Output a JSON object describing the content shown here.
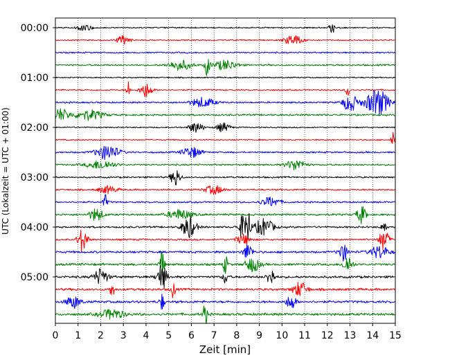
{
  "chart_data": {
    "type": "line",
    "title": "",
    "xlabel": "Zeit  [min]",
    "ylabel": "UTC (Lokalzeit = UTC + 01:00)",
    "xlim": [
      0,
      15
    ],
    "x_ticks": [
      0,
      1,
      2,
      3,
      4,
      5,
      6,
      7,
      8,
      9,
      10,
      11,
      12,
      13,
      14,
      15
    ],
    "grid": "vertical dotted at each minute",
    "y_ticks": [
      "00:00",
      "01:00",
      "02:00",
      "03:00",
      "04:00",
      "05:00"
    ],
    "trace_interval_minutes": 15,
    "colors": [
      "#000000",
      "#ff0000",
      "#0000ff",
      "#008000"
    ],
    "traces": [
      {
        "start": "00:00",
        "color": "#000000",
        "amplitude": 0.35,
        "events": [
          {
            "t": 12.2,
            "a": 1.6,
            "w": 0.1
          },
          {
            "t": 1.3,
            "a": 0.6,
            "w": 0.3
          }
        ]
      },
      {
        "start": "00:15",
        "color": "#ff0000",
        "amplitude": 0.35,
        "events": [
          {
            "t": 3.0,
            "a": 0.7,
            "w": 0.3
          },
          {
            "t": 10.5,
            "a": 0.8,
            "w": 0.4
          }
        ]
      },
      {
        "start": "00:30",
        "color": "#0000ff",
        "amplitude": 0.4,
        "events": []
      },
      {
        "start": "00:45",
        "color": "#008000",
        "amplitude": 0.45,
        "events": [
          {
            "t": 6.7,
            "a": 1.8,
            "w": 0.1
          },
          {
            "t": 5.5,
            "a": 0.8,
            "w": 0.5
          },
          {
            "t": 7.5,
            "a": 0.8,
            "w": 0.5
          }
        ]
      },
      {
        "start": "01:00",
        "color": "#000000",
        "amplitude": 0.35,
        "events": []
      },
      {
        "start": "01:15",
        "color": "#ff0000",
        "amplitude": 0.4,
        "events": [
          {
            "t": 3.2,
            "a": 1.6,
            "w": 0.08
          },
          {
            "t": 4.0,
            "a": 1.2,
            "w": 0.25
          },
          {
            "t": 12.9,
            "a": 1.0,
            "w": 0.1
          }
        ]
      },
      {
        "start": "01:30",
        "color": "#0000ff",
        "amplitude": 0.45,
        "events": [
          {
            "t": 6.5,
            "a": 0.8,
            "w": 0.5
          },
          {
            "t": 13.0,
            "a": 1.5,
            "w": 0.3
          },
          {
            "t": 14.2,
            "a": 2.2,
            "w": 0.5
          }
        ]
      },
      {
        "start": "01:45",
        "color": "#008000",
        "amplitude": 0.5,
        "events": [
          {
            "t": 0.2,
            "a": 1.0,
            "w": 0.4
          },
          {
            "t": 1.5,
            "a": 0.8,
            "w": 0.6
          }
        ]
      },
      {
        "start": "02:00",
        "color": "#000000",
        "amplitude": 0.35,
        "events": [
          {
            "t": 6.2,
            "a": 0.9,
            "w": 0.3
          },
          {
            "t": 7.4,
            "a": 0.7,
            "w": 0.3
          }
        ]
      },
      {
        "start": "02:15",
        "color": "#ff0000",
        "amplitude": 0.35,
        "events": [
          {
            "t": 14.9,
            "a": 1.2,
            "w": 0.1
          }
        ]
      },
      {
        "start": "02:30",
        "color": "#0000ff",
        "amplitude": 0.45,
        "events": [
          {
            "t": 2.3,
            "a": 1.2,
            "w": 0.5
          },
          {
            "t": 6.0,
            "a": 0.9,
            "w": 0.4
          }
        ]
      },
      {
        "start": "02:45",
        "color": "#008000",
        "amplitude": 0.45,
        "events": [
          {
            "t": 2.0,
            "a": 0.7,
            "w": 0.6
          },
          {
            "t": 10.6,
            "a": 0.9,
            "w": 0.4
          }
        ]
      },
      {
        "start": "03:00",
        "color": "#000000",
        "amplitude": 0.45,
        "events": [
          {
            "t": 5.3,
            "a": 1.5,
            "w": 0.2
          }
        ]
      },
      {
        "start": "03:15",
        "color": "#ff0000",
        "amplitude": 0.45,
        "events": [
          {
            "t": 2.3,
            "a": 0.6,
            "w": 0.4
          },
          {
            "t": 7.0,
            "a": 0.7,
            "w": 0.4
          }
        ]
      },
      {
        "start": "03:30",
        "color": "#0000ff",
        "amplitude": 0.45,
        "events": [
          {
            "t": 2.2,
            "a": 1.2,
            "w": 0.1
          },
          {
            "t": 9.5,
            "a": 0.8,
            "w": 0.4
          }
        ]
      },
      {
        "start": "03:45",
        "color": "#008000",
        "amplitude": 0.55,
        "events": [
          {
            "t": 1.8,
            "a": 1.0,
            "w": 0.3
          },
          {
            "t": 5.5,
            "a": 0.8,
            "w": 0.5
          },
          {
            "t": 13.5,
            "a": 1.4,
            "w": 0.2
          }
        ]
      },
      {
        "start": "04:00",
        "color": "#000000",
        "amplitude": 0.5,
        "events": [
          {
            "t": 5.9,
            "a": 1.8,
            "w": 0.3
          },
          {
            "t": 8.3,
            "a": 2.0,
            "w": 0.2
          },
          {
            "t": 8.5,
            "a": 2.4,
            "w": 0.1
          },
          {
            "t": 9.2,
            "a": 1.4,
            "w": 0.4
          },
          {
            "t": 14.5,
            "a": 1.2,
            "w": 0.1
          }
        ]
      },
      {
        "start": "04:15",
        "color": "#ff0000",
        "amplitude": 0.5,
        "events": [
          {
            "t": 1.2,
            "a": 2.0,
            "w": 0.2
          },
          {
            "t": 14.5,
            "a": 1.8,
            "w": 0.2
          },
          {
            "t": 8.3,
            "a": 0.8,
            "w": 0.3
          }
        ]
      },
      {
        "start": "04:30",
        "color": "#0000ff",
        "amplitude": 0.6,
        "events": [
          {
            "t": 8.5,
            "a": 1.3,
            "w": 0.2
          },
          {
            "t": 12.7,
            "a": 1.4,
            "w": 0.2
          },
          {
            "t": 14.3,
            "a": 1.0,
            "w": 0.4
          }
        ]
      },
      {
        "start": "04:45",
        "color": "#008000",
        "amplitude": 0.65,
        "events": [
          {
            "t": 4.7,
            "a": 2.5,
            "w": 0.1
          },
          {
            "t": 7.5,
            "a": 1.5,
            "w": 0.1
          },
          {
            "t": 8.7,
            "a": 1.2,
            "w": 0.3
          },
          {
            "t": 12.9,
            "a": 1.4,
            "w": 0.2
          }
        ]
      },
      {
        "start": "05:00",
        "color": "#000000",
        "amplitude": 0.65,
        "events": [
          {
            "t": 2.0,
            "a": 1.3,
            "w": 0.3
          },
          {
            "t": 4.7,
            "a": 2.2,
            "w": 0.2
          },
          {
            "t": 7.5,
            "a": 1.2,
            "w": 0.1
          },
          {
            "t": 9.5,
            "a": 1.6,
            "w": 0.15
          }
        ]
      },
      {
        "start": "05:15",
        "color": "#ff0000",
        "amplitude": 0.65,
        "events": [
          {
            "t": 2.5,
            "a": 1.2,
            "w": 0.1
          },
          {
            "t": 5.2,
            "a": 1.3,
            "w": 0.1
          },
          {
            "t": 10.8,
            "a": 1.2,
            "w": 0.3
          }
        ]
      },
      {
        "start": "05:30",
        "color": "#0000ff",
        "amplitude": 0.65,
        "events": [
          {
            "t": 0.8,
            "a": 1.0,
            "w": 0.3
          },
          {
            "t": 4.7,
            "a": 1.4,
            "w": 0.1
          },
          {
            "t": 10.4,
            "a": 1.2,
            "w": 0.2
          }
        ]
      },
      {
        "start": "05:45",
        "color": "#008000",
        "amplitude": 0.7,
        "events": [
          {
            "t": 6.6,
            "a": 1.8,
            "w": 0.1
          },
          {
            "t": 2.5,
            "a": 0.8,
            "w": 0.5
          }
        ]
      }
    ]
  }
}
